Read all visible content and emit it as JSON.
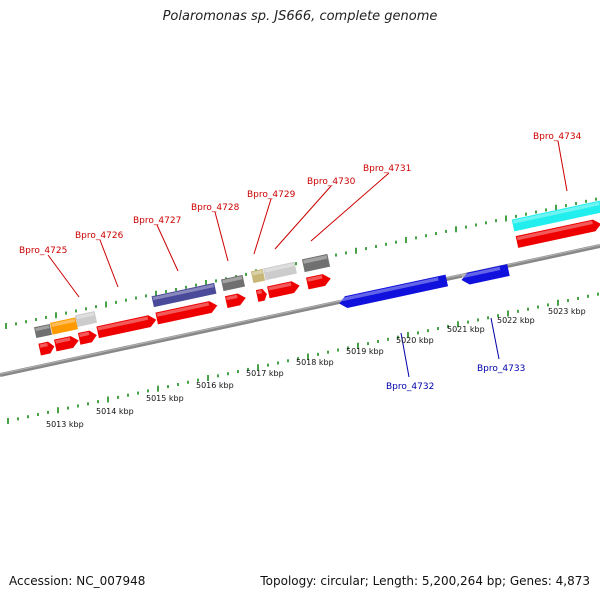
{
  "title": "Polaromonas sp. JS666, complete genome",
  "footer": {
    "accession": "Accession: NC_007948",
    "summary": "Topology: circular; Length: 5,200,264 bp; Genes: 4,873"
  },
  "colors": {
    "backbone": "#888888",
    "ticks": "#1a8a1a",
    "forward_label": "#cc0000",
    "reverse_label": "#0000aa",
    "red": "#ee0000",
    "blue": "#1111dd",
    "slate": "#4a4a9a",
    "cyan": "#22eeee",
    "gray": "#707070",
    "lightgray": "#cccccc",
    "orange": "#ff9900",
    "tan": "#c8b878"
  },
  "scale_labels": [
    "5013 kbp",
    "5014 kbp",
    "5015 kbp",
    "5016 kbp",
    "5017 kbp",
    "5018 kbp",
    "5019 kbp",
    "5020 kbp",
    "5021 kbp",
    "5022 kbp",
    "5023 kbp"
  ],
  "gene_labels": [
    {
      "text": "Bpro_4725",
      "strand": "forward"
    },
    {
      "text": "Bpro_4726",
      "strand": "forward"
    },
    {
      "text": "Bpro_4727",
      "strand": "forward"
    },
    {
      "text": "Bpro_4728",
      "strand": "forward"
    },
    {
      "text": "Bpro_4729",
      "strand": "forward"
    },
    {
      "text": "Bpro_4730",
      "strand": "forward"
    },
    {
      "text": "Bpro_4731",
      "strand": "forward"
    },
    {
      "text": "Bpro_4734",
      "strand": "forward"
    },
    {
      "text": "Bpro_4732",
      "strand": "reverse"
    },
    {
      "text": "Bpro_4733",
      "strand": "reverse"
    }
  ]
}
